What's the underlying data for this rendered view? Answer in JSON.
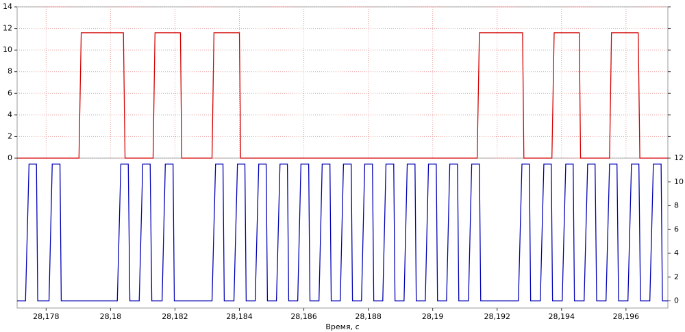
{
  "chart_data": {
    "type": "line",
    "xlabel": "Время, с",
    "xlim": [
      28.1771,
      28.1973
    ],
    "xticks": [
      {
        "value": 28.178,
        "label": "28,178"
      },
      {
        "value": 28.18,
        "label": "28,18"
      },
      {
        "value": 28.182,
        "label": "28,182"
      },
      {
        "value": 28.184,
        "label": "28,184"
      },
      {
        "value": 28.186,
        "label": "28,186"
      },
      {
        "value": 28.188,
        "label": "28,188"
      },
      {
        "value": 28.19,
        "label": "28,19"
      },
      {
        "value": 28.192,
        "label": "28,192"
      },
      {
        "value": 28.194,
        "label": "28,194"
      },
      {
        "value": 28.196,
        "label": "28,196"
      }
    ],
    "ylim": [
      0,
      14
    ],
    "yticks": [
      0,
      2,
      4,
      6,
      8,
      10,
      12,
      14
    ],
    "y2lim": [
      -0.6,
      12
    ],
    "y2ticks": [
      0,
      2,
      4,
      6,
      8,
      10,
      12
    ],
    "grid": true,
    "series": [
      {
        "color": "#d40000",
        "x": [
          28.1771,
          28.17902,
          28.17909,
          28.1804,
          28.18045,
          28.18132,
          28.18138,
          28.18217,
          28.18221,
          28.18315,
          28.18321,
          28.184,
          28.18404,
          28.19138,
          28.19145,
          28.19279,
          28.19283,
          28.1937,
          28.19377,
          28.19455,
          28.19459,
          28.19549,
          28.19555,
          28.19638,
          28.19643,
          28.1973
        ],
        "values": [
          0,
          0,
          11.6,
          11.6,
          0,
          0,
          11.6,
          11.6,
          0,
          0,
          11.6,
          11.6,
          0,
          0,
          11.6,
          11.6,
          0,
          0,
          11.6,
          11.6,
          0,
          0,
          11.6,
          11.6,
          0,
          0
        ]
      },
      {
        "color": "#0000b4",
        "axis": "y2",
        "x": [
          28.1771,
          28.17736,
          28.17747,
          28.1777,
          28.17774,
          28.17809,
          28.17819,
          28.17843,
          28.17847,
          28.18021,
          28.18032,
          28.18055,
          28.1806,
          28.18089,
          28.181,
          28.18123,
          28.18128,
          28.1816,
          28.1817,
          28.18194,
          28.18198,
          28.18315,
          28.18326,
          28.18349,
          28.18353,
          28.18383,
          28.18394,
          28.18417,
          28.18421,
          28.18449,
          28.1846,
          28.18483,
          28.18487,
          28.18515,
          28.18526,
          28.18549,
          28.18553,
          28.18581,
          28.18591,
          28.18615,
          28.18619,
          28.18647,
          28.18657,
          28.18681,
          28.18685,
          28.18713,
          28.18723,
          28.18747,
          28.18751,
          28.18779,
          28.18789,
          28.18813,
          28.18817,
          28.18845,
          28.18855,
          28.18879,
          28.18883,
          28.18911,
          28.18921,
          28.18945,
          28.18949,
          28.18977,
          28.18987,
          28.19011,
          28.19015,
          28.19043,
          28.19053,
          28.19077,
          28.19081,
          28.19111,
          28.19121,
          28.19145,
          28.19149,
          28.19266,
          28.19277,
          28.193,
          28.19304,
          28.19334,
          28.19345,
          28.19368,
          28.19372,
          28.19402,
          28.19413,
          28.19436,
          28.1944,
          28.1947,
          28.19481,
          28.19504,
          28.19509,
          28.19538,
          28.19549,
          28.19572,
          28.19577,
          28.19606,
          28.19617,
          28.1964,
          28.19645,
          28.19674,
          28.19685,
          28.19709,
          28.19713,
          28.1973
        ],
        "values": [
          0,
          0,
          11.5,
          11.5,
          0,
          0,
          11.5,
          11.5,
          0,
          0,
          11.5,
          11.5,
          0,
          0,
          11.5,
          11.5,
          0,
          0,
          11.5,
          11.5,
          0,
          0,
          11.5,
          11.5,
          0,
          0,
          11.5,
          11.5,
          0,
          0,
          11.5,
          11.5,
          0,
          0,
          11.5,
          11.5,
          0,
          0,
          11.5,
          11.5,
          0,
          0,
          11.5,
          11.5,
          0,
          0,
          11.5,
          11.5,
          0,
          0,
          11.5,
          11.5,
          0,
          0,
          11.5,
          11.5,
          0,
          0,
          11.5,
          11.5,
          0,
          0,
          11.5,
          11.5,
          0,
          0,
          11.5,
          11.5,
          0,
          0,
          11.5,
          11.5,
          0,
          0,
          11.5,
          11.5,
          0,
          0,
          11.5,
          11.5,
          0,
          0,
          11.5,
          11.5,
          0,
          0,
          11.5,
          11.5,
          0,
          0,
          11.5,
          11.5,
          0,
          0,
          11.5,
          11.5,
          0,
          0,
          11.5,
          11.5,
          0,
          0
        ]
      }
    ]
  }
}
